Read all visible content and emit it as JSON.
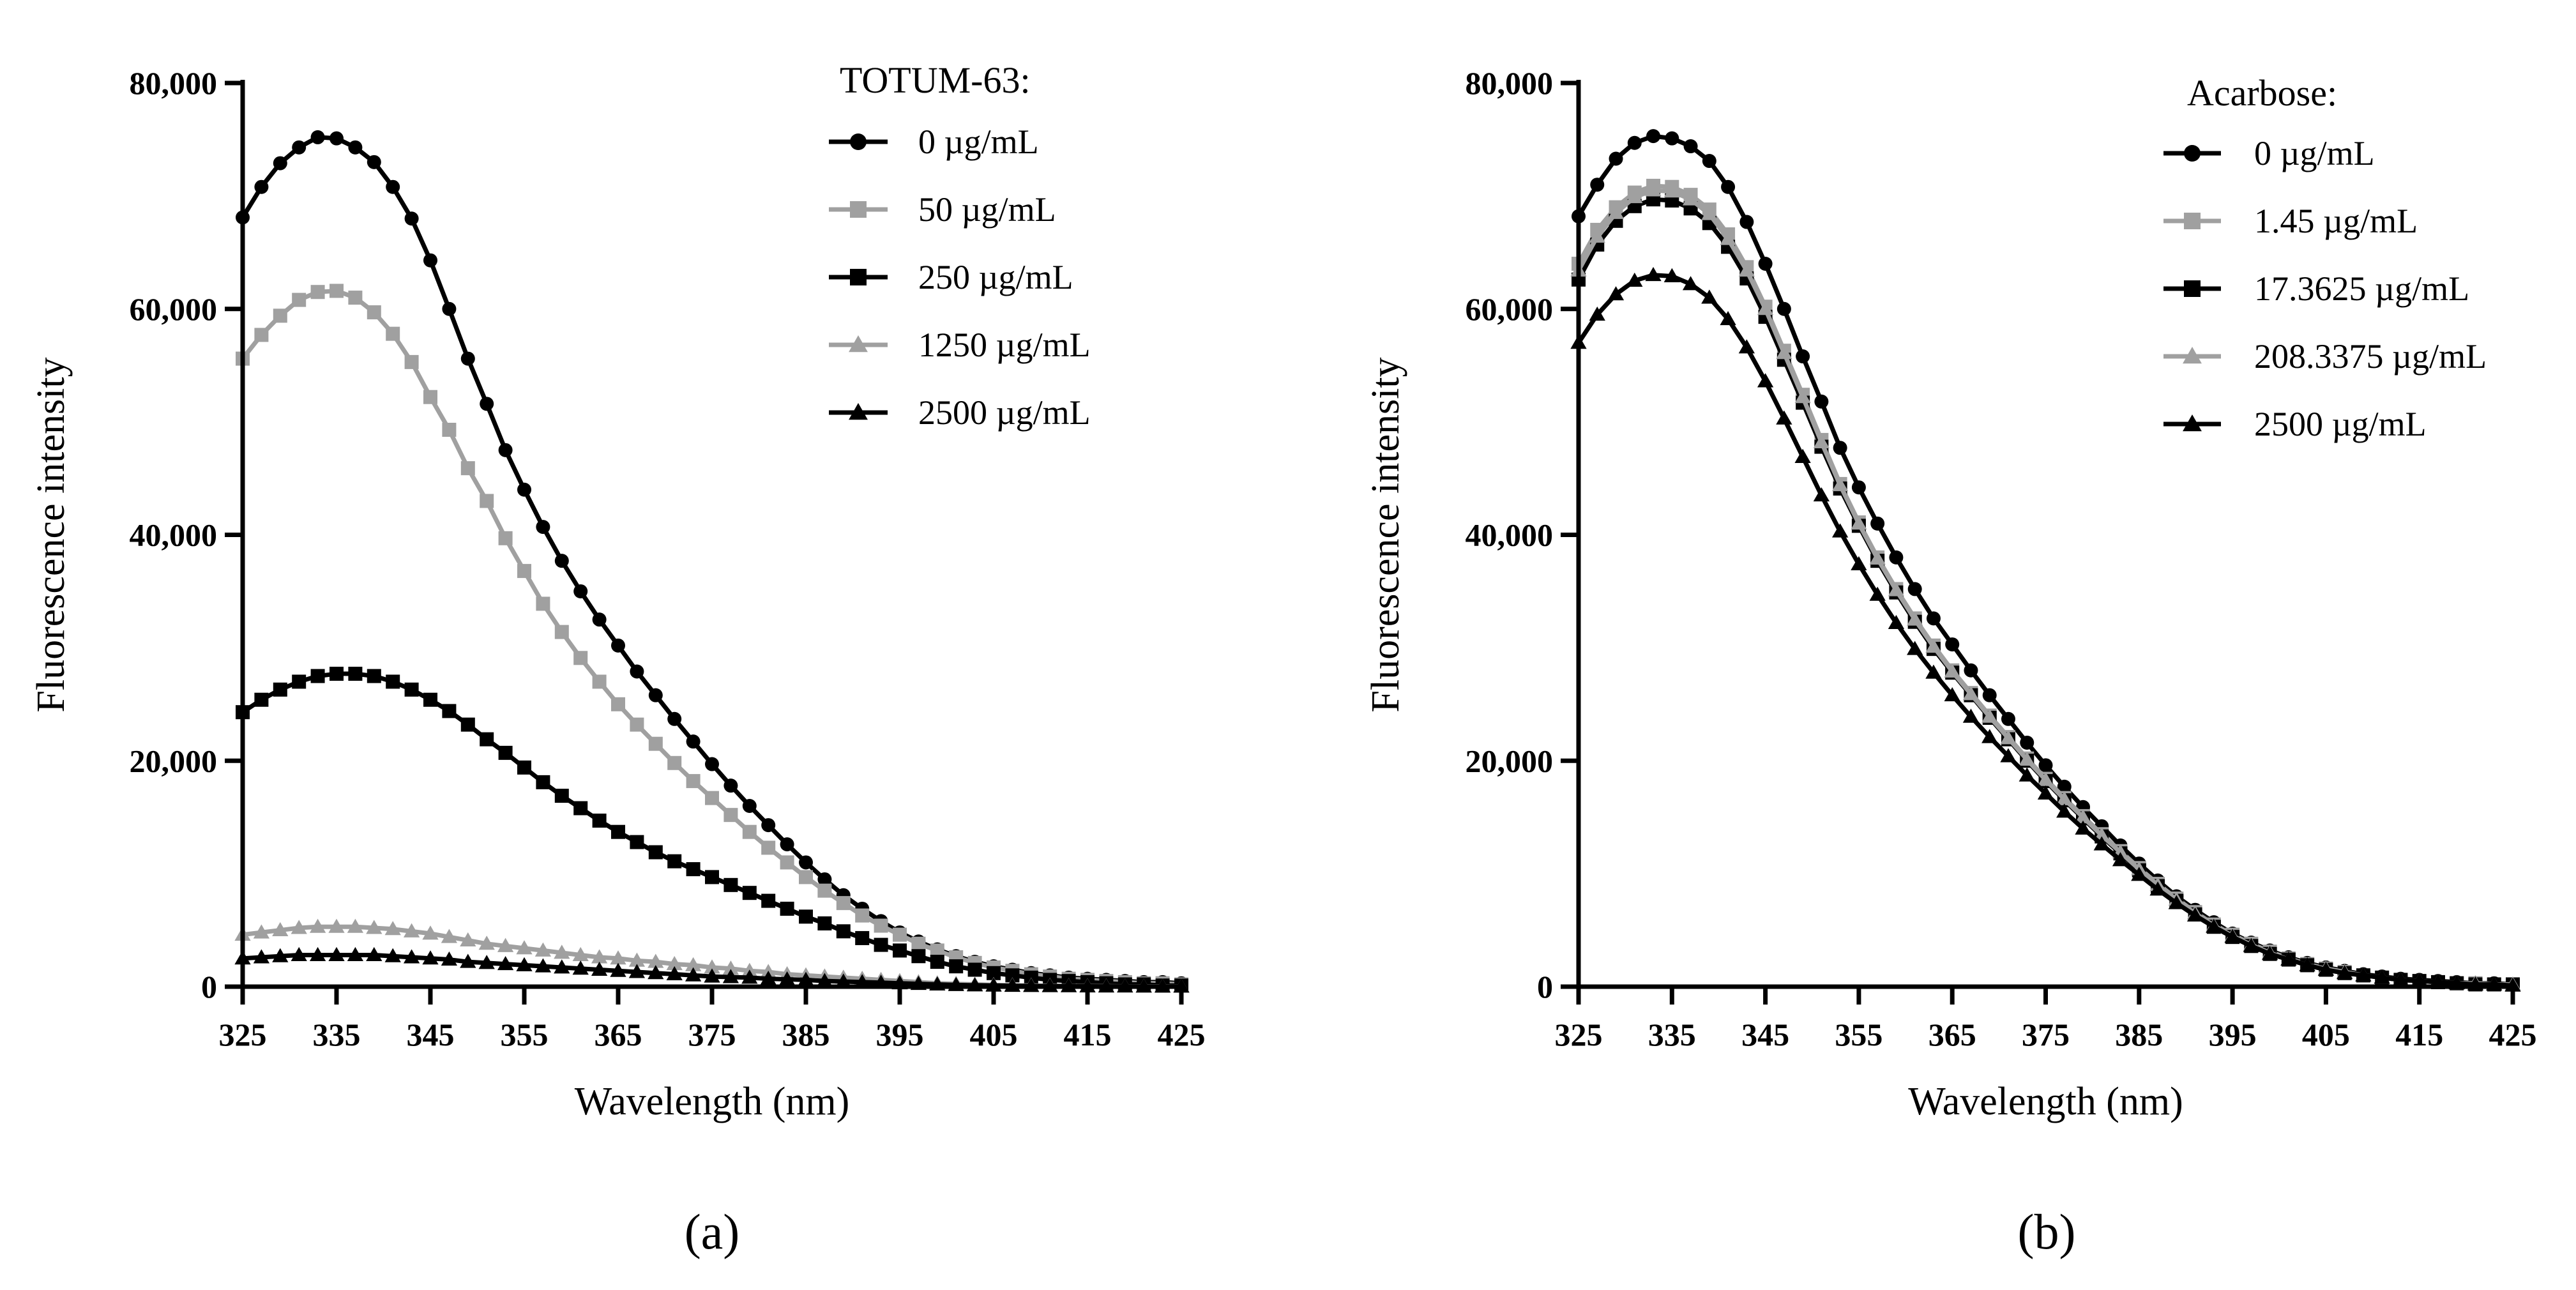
{
  "chart_data": [
    {
      "type": "line",
      "panel_label": "(a)",
      "xlabel": "Wavelength (nm)",
      "ylabel": "Fluorescence intensity",
      "xlim": [
        325,
        425
      ],
      "ylim": [
        0,
        80000
      ],
      "xticks": [
        325,
        335,
        345,
        355,
        365,
        375,
        385,
        395,
        405,
        415,
        425
      ],
      "yticks": [
        0,
        20000,
        40000,
        60000,
        80000
      ],
      "ytick_labels": [
        "0",
        "20,000",
        "40,000",
        "60,000",
        "80,000"
      ],
      "legend_title": "TOTUM-63:",
      "legend_position": "top-right",
      "x_start": 325,
      "x_step": 2,
      "series": [
        {
          "name": "0 µg/mL",
          "color": "#000000",
          "marker": "circle",
          "values": [
            68100,
            70800,
            72900,
            74300,
            75200,
            75100,
            74300,
            73000,
            70800,
            68000,
            64300,
            60000,
            55600,
            51600,
            47500,
            44000,
            40700,
            37700,
            35000,
            32500,
            30200,
            27900,
            25800,
            23700,
            21700,
            19700,
            17800,
            16000,
            14300,
            12600,
            11000,
            9500,
            8100,
            6900,
            5800,
            4800,
            4000,
            3300,
            2700,
            2200,
            1800,
            1500,
            1200,
            1000,
            800,
            700,
            600,
            500,
            400,
            400,
            300
          ]
        },
        {
          "name": "50 µg/mL",
          "color": "#a0a0a0",
          "marker": "square",
          "values": [
            55600,
            57700,
            59400,
            60800,
            61500,
            61600,
            61000,
            59700,
            57800,
            55300,
            52200,
            49300,
            45900,
            43000,
            39700,
            36800,
            33900,
            31400,
            29100,
            27000,
            25000,
            23200,
            21500,
            19800,
            18200,
            16700,
            15200,
            13700,
            12300,
            11000,
            9700,
            8500,
            7400,
            6300,
            5400,
            4600,
            3800,
            3200,
            2600,
            2100,
            1700,
            1400,
            1100,
            900,
            700,
            600,
            500,
            400,
            300,
            300,
            200
          ]
        },
        {
          "name": "250 µg/mL",
          "color": "#000000",
          "marker": "square",
          "values": [
            24300,
            25400,
            26300,
            27000,
            27500,
            27700,
            27700,
            27500,
            27000,
            26300,
            25400,
            24400,
            23200,
            21900,
            20700,
            19400,
            18100,
            16900,
            15800,
            14700,
            13700,
            12800,
            11900,
            11100,
            10400,
            9700,
            9000,
            8300,
            7600,
            6900,
            6200,
            5600,
            4900,
            4300,
            3700,
            3200,
            2700,
            2200,
            1800,
            1500,
            1200,
            1000,
            800,
            600,
            500,
            400,
            300,
            200,
            200,
            100,
            100
          ]
        },
        {
          "name": "1250 µg/mL",
          "color": "#a0a0a0",
          "marker": "triangle",
          "values": [
            4600,
            4800,
            5000,
            5200,
            5300,
            5300,
            5300,
            5200,
            5100,
            4900,
            4700,
            4400,
            4100,
            3800,
            3600,
            3400,
            3200,
            3000,
            2800,
            2600,
            2500,
            2300,
            2200,
            2000,
            1900,
            1700,
            1600,
            1400,
            1300,
            1100,
            1000,
            900,
            800,
            700,
            600,
            500,
            400,
            300,
            250,
            200,
            150,
            120,
            100,
            80,
            60,
            50,
            40,
            30,
            20,
            20,
            10
          ]
        },
        {
          "name": "2500 µg/mL",
          "color": "#000000",
          "marker": "triangle",
          "values": [
            2500,
            2600,
            2700,
            2800,
            2800,
            2800,
            2800,
            2800,
            2700,
            2600,
            2500,
            2400,
            2200,
            2100,
            2000,
            1900,
            1800,
            1700,
            1600,
            1500,
            1400,
            1300,
            1200,
            1100,
            1000,
            900,
            850,
            800,
            700,
            650,
            600,
            500,
            450,
            400,
            350,
            300,
            250,
            200,
            150,
            120,
            100,
            80,
            60,
            50,
            40,
            30,
            20,
            20,
            10,
            10,
            10
          ]
        }
      ]
    },
    {
      "type": "line",
      "panel_label": "(b)",
      "xlabel": "Wavelength (nm)",
      "ylabel": "Fluorescence intensity",
      "xlim": [
        325,
        425
      ],
      "ylim": [
        0,
        80000
      ],
      "xticks": [
        325,
        335,
        345,
        355,
        365,
        375,
        385,
        395,
        405,
        415,
        425
      ],
      "yticks": [
        0,
        20000,
        40000,
        60000,
        80000
      ],
      "ytick_labels": [
        "0",
        "20,000",
        "40,000",
        "60,000",
        "80,000"
      ],
      "legend_title": "Acarbose:",
      "legend_position": "top-right",
      "x_start": 325,
      "x_step": 2,
      "series": [
        {
          "name": "0 µg/mL",
          "color": "#000000",
          "marker": "circle",
          "values": [
            68200,
            71000,
            73300,
            74700,
            75300,
            75100,
            74400,
            73100,
            70800,
            67700,
            64000,
            60000,
            55800,
            51800,
            47700,
            44200,
            41000,
            38000,
            35200,
            32600,
            30300,
            28000,
            25800,
            23700,
            21600,
            19600,
            17700,
            15900,
            14200,
            12500,
            10900,
            9400,
            8000,
            6800,
            5700,
            4700,
            3900,
            3200,
            2600,
            2100,
            1700,
            1400,
            1100,
            900,
            700,
            600,
            500,
            400,
            300,
            300,
            200
          ]
        },
        {
          "name": "1.45 µg/mL",
          "color": "#a0a0a0",
          "marker": "square",
          "values": [
            64000,
            67000,
            69000,
            70300,
            70900,
            70800,
            70100,
            68800,
            66600,
            63700,
            60200,
            56300,
            52400,
            48400,
            44500,
            41100,
            38000,
            35200,
            32600,
            30200,
            28000,
            26000,
            24000,
            22100,
            20200,
            18400,
            16700,
            15100,
            13500,
            12000,
            10500,
            9100,
            7800,
            6600,
            5500,
            4600,
            3800,
            3100,
            2500,
            2000,
            1600,
            1300,
            1000,
            800,
            600,
            500,
            400,
            300,
            300,
            200,
            200
          ]
        },
        {
          "name": "17.3625 µg/mL",
          "color": "#000000",
          "marker": "square",
          "values": [
            62600,
            65700,
            67800,
            69100,
            69700,
            69600,
            68900,
            67600,
            65500,
            62700,
            59300,
            55500,
            51700,
            47800,
            44100,
            40800,
            37700,
            34900,
            32300,
            29900,
            27800,
            25800,
            23800,
            21900,
            20000,
            18200,
            16500,
            14900,
            13300,
            11800,
            10300,
            8900,
            7600,
            6400,
            5300,
            4400,
            3600,
            2900,
            2400,
            1900,
            1500,
            1200,
            1000,
            800,
            600,
            500,
            400,
            300,
            200,
            200,
            200
          ]
        },
        {
          "name": "208.3375 µg/mL",
          "color": "#a0a0a0",
          "marker": "triangle",
          "values": [
            63400,
            66400,
            68500,
            69900,
            70500,
            70400,
            69700,
            68400,
            66200,
            63400,
            60000,
            56100,
            52200,
            48200,
            44400,
            41000,
            37900,
            35100,
            32500,
            30100,
            27900,
            25900,
            23900,
            22000,
            20100,
            18300,
            16600,
            15000,
            13400,
            11900,
            10400,
            9000,
            7700,
            6500,
            5400,
            4500,
            3700,
            3000,
            2400,
            1900,
            1600,
            1300,
            1000,
            800,
            600,
            500,
            400,
            300,
            300,
            200,
            200
          ]
        },
        {
          "name": "2500 µg/mL",
          "color": "#000000",
          "marker": "triangle",
          "values": [
            57000,
            59500,
            61300,
            62500,
            63000,
            62900,
            62200,
            61000,
            59100,
            56600,
            53600,
            50300,
            46900,
            43500,
            40300,
            37400,
            34700,
            32200,
            29900,
            27800,
            25800,
            23900,
            22100,
            20400,
            18700,
            17100,
            15500,
            14000,
            12600,
            11200,
            9900,
            8600,
            7400,
            6300,
            5300,
            4400,
            3600,
            2900,
            2400,
            1900,
            1500,
            1200,
            1000,
            800,
            600,
            500,
            400,
            300,
            200,
            200,
            100
          ]
        }
      ]
    }
  ]
}
